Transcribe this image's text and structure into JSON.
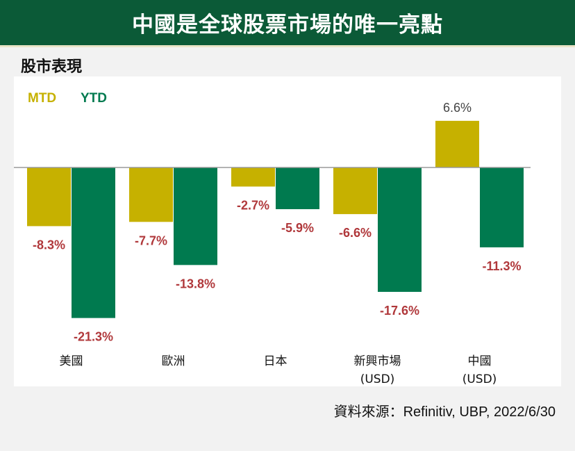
{
  "header": {
    "title": "中國是全球股票市場的唯一亮點"
  },
  "subtitle": "股市表現",
  "source": "資料來源：Refinitiv, UBP, 2022/6/30",
  "colors": {
    "mtd": "#c6b100",
    "ytd": "#007a4f",
    "label_negative": "#b0383b",
    "label_positive": "#444444",
    "header_bg": "#0b5a37"
  },
  "chart_data": {
    "type": "bar",
    "categories": [
      [
        "美國"
      ],
      [
        "歐洲"
      ],
      [
        "日本"
      ],
      [
        "新興市場",
        "(USD)"
      ],
      [
        "中國",
        "(USD)"
      ]
    ],
    "series": [
      {
        "name": "MTD",
        "values": [
          -8.3,
          -7.7,
          -2.7,
          -6.6,
          6.6
        ],
        "labels": [
          "-8.3%",
          "-7.7%",
          "-2.7%",
          "-6.6%",
          "6.6%"
        ]
      },
      {
        "name": "YTD",
        "values": [
          -21.3,
          -13.8,
          -5.9,
          -17.6,
          -11.3
        ],
        "labels": [
          "-21.3%",
          "-13.8%",
          "-5.9%",
          "-17.6%",
          "-11.3%"
        ]
      }
    ],
    "legend_position": "top-left",
    "grid": false,
    "ylim": [
      -22,
      7
    ]
  }
}
